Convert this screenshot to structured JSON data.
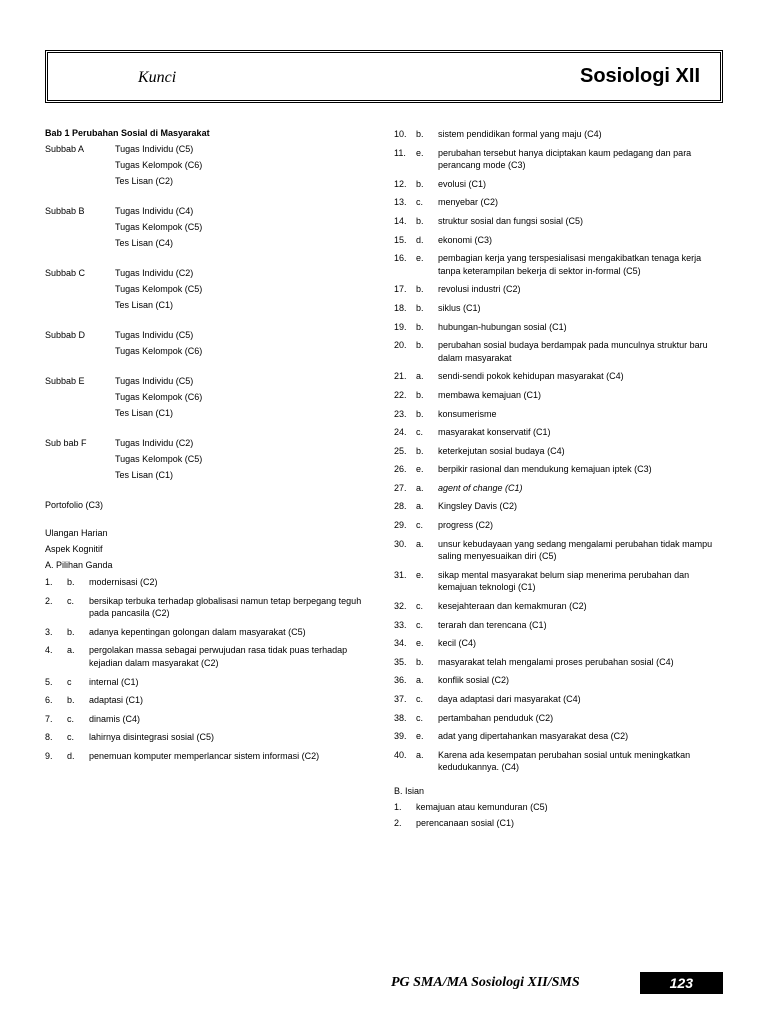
{
  "header": {
    "kunci": "Kunci",
    "title": "Sosiologi  XII"
  },
  "leftCol": {
    "chapterTitle": "Bab 1  Perubahan Sosial di  Masyarakat",
    "subbabs": [
      {
        "label": "Subbab A",
        "items": [
          "Tugas Individu (C5)",
          "Tugas Kelompok (C6)",
          "Tes Lisan (C2)"
        ]
      },
      {
        "label": "Subbab B",
        "items": [
          "Tugas Individu  (C4)",
          "Tugas Kelompok (C5)",
          "Tes Lisan (C4)"
        ]
      },
      {
        "label": "Subbab C",
        "items": [
          "Tugas Individu  (C2)",
          "Tugas Kelompok (C5)",
          "Tes Lisan (C1)"
        ]
      },
      {
        "label": "Subbab D",
        "items": [
          "Tugas Individu  (C5)",
          "Tugas Kelompok (C6)"
        ]
      },
      {
        "label": "Subbab E",
        "items": [
          "Tugas Individu  (C5)",
          "Tugas Kelompok (C6)",
          "Tes Lisan (C1)"
        ]
      },
      {
        "label": "Sub bab F",
        "items": [
          "Tugas Individu  (C2)",
          "Tugas Kelompok (C5)",
          "Tes Lisan (C1)"
        ]
      }
    ],
    "portofolio": "Portofolio (C3)",
    "ulangan": "Ulangan Harian",
    "aspek": "Aspek Kognitif",
    "pilihanGanda": "A.    Pilihan Ganda",
    "answers": [
      {
        "n": "1.",
        "l": "b.",
        "t": "modernisasi (C2)"
      },
      {
        "n": "2.",
        "l": "c.",
        "t": "bersikap terbuka terhadap globalisasi namun tetap berpegang teguh pada pancasila (C2)"
      },
      {
        "n": "3.",
        "l": "b.",
        "t": "adanya kepentingan golongan dalam masyarakat (C5)"
      },
      {
        "n": "4.",
        "l": "a.",
        "t": "pergolakan massa sebagai perwujudan rasa tidak puas terhadap kejadian dalam masyarakat (C2)"
      },
      {
        "n": "5.",
        "l": "c",
        "t": "internal (C1)"
      },
      {
        "n": "6.",
        "l": "b.",
        "t": "adaptasi (C1)"
      },
      {
        "n": "7.",
        "l": "c.",
        "t": "dinamis (C4)"
      },
      {
        "n": "8.",
        "l": "c.",
        "t": "lahirnya disintegrasi sosial (C5)"
      },
      {
        "n": "9.",
        "l": "d.",
        "t": "penemuan komputer memperlancar sistem informasi (C2)"
      }
    ]
  },
  "rightCol": {
    "answers": [
      {
        "n": "10.",
        "l": "b.",
        "t": "sistem pendidikan formal yang maju (C4)"
      },
      {
        "n": "11.",
        "l": "e.",
        "t": "perubahan tersebut hanya diciptakan kaum pedagang dan para perancang mode (C3)"
      },
      {
        "n": "12.",
        "l": "b.",
        "t": "evolusi    (C1)"
      },
      {
        "n": "13.",
        "l": "c.",
        "t": "menyebar  (C2)"
      },
      {
        "n": "14.",
        "l": "b.",
        "t": "struktur sosial dan fungsi sosial (C5)"
      },
      {
        "n": "15.",
        "l": "d.",
        "t": "ekonomi (C3)"
      },
      {
        "n": "16.",
        "l": "e.",
        "t": "pembagian kerja yang terspesialisasi mengakibatkan tenaga kerja tanpa keterampilan bekerja di sektor in-formal (C5)"
      },
      {
        "n": "17.",
        "l": "b.",
        "t": "revolusi industri (C2)"
      },
      {
        "n": "18.",
        "l": "b.",
        "t": "siklus  (C1)"
      },
      {
        "n": "19.",
        "l": "b.",
        "t": "hubungan-hubungan sosial (C1)"
      },
      {
        "n": "20.",
        "l": "b.",
        "t": "perubahan sosial budaya berdampak pada munculnya struktur baru dalam masyarakat"
      },
      {
        "n": "21.",
        "l": "a.",
        "t": "sendi-sendi pokok kehidupan masyarakat (C4)"
      },
      {
        "n": "22.",
        "l": "b.",
        "t": "membawa kemajuan (C1)"
      },
      {
        "n": "23.",
        "l": "b.",
        "t": "konsumerisme"
      },
      {
        "n": "24.",
        "l": "c.",
        "t": "masyarakat konservatif (C1)"
      },
      {
        "n": "25.",
        "l": "b.",
        "t": "keterkejutan sosial budaya (C4)"
      },
      {
        "n": "26.",
        "l": "e.",
        "t": "berpikir rasional dan mendukung kemajuan iptek (C3)"
      },
      {
        "n": "27.",
        "l": "a.",
        "t": "agent of change (C1)",
        "italic": true
      },
      {
        "n": "28.",
        "l": "a.",
        "t": "Kingsley Davis (C2)"
      },
      {
        "n": "29.",
        "l": "c.",
        "t": "progress (C2)"
      },
      {
        "n": "30.",
        "l": "a.",
        "t": "unsur kebudayaan yang sedang mengalami perubahan tidak mampu saling menyesuaikan diri (C5)"
      },
      {
        "n": "31.",
        "l": "e.",
        "t": "sikap mental masyarakat belum siap menerima perubahan dan kemajuan teknologi (C1)"
      },
      {
        "n": "32.",
        "l": "c.",
        "t": "kesejahteraan dan kemakmuran (C2)"
      },
      {
        "n": "33.",
        "l": "c.",
        "t": "terarah dan terencana (C1)"
      },
      {
        "n": "34.",
        "l": "e.",
        "t": "kecil (C4)"
      },
      {
        "n": "35.",
        "l": "b.",
        "t": "masyarakat telah mengalami proses perubahan sosial (C4)"
      },
      {
        "n": "36.",
        "l": "a.",
        "t": "konflik sosial (C2)"
      },
      {
        "n": "37.",
        "l": "c.",
        "t": "daya adaptasi dari masyarakat (C4)"
      },
      {
        "n": "38.",
        "l": "c.",
        "t": "pertambahan penduduk (C2)"
      },
      {
        "n": "39.",
        "l": "e.",
        "t": "adat yang dipertahankan masyarakat desa (C2)"
      },
      {
        "n": "40.",
        "l": "a.",
        "t": "Karena ada kesempatan perubahan sosial untuk meningkatkan kedudukannya. (C4)"
      }
    ],
    "isianLabel": "B.    Isian",
    "isian": [
      {
        "n": "1.",
        "t": "kemajuan atau kemunduran (C5)"
      },
      {
        "n": "2.",
        "t": "perencanaan sosial (C1)"
      }
    ]
  },
  "footer": {
    "title": "PG SMA/MA Sosiologi  XII/SMS",
    "page": "123"
  }
}
